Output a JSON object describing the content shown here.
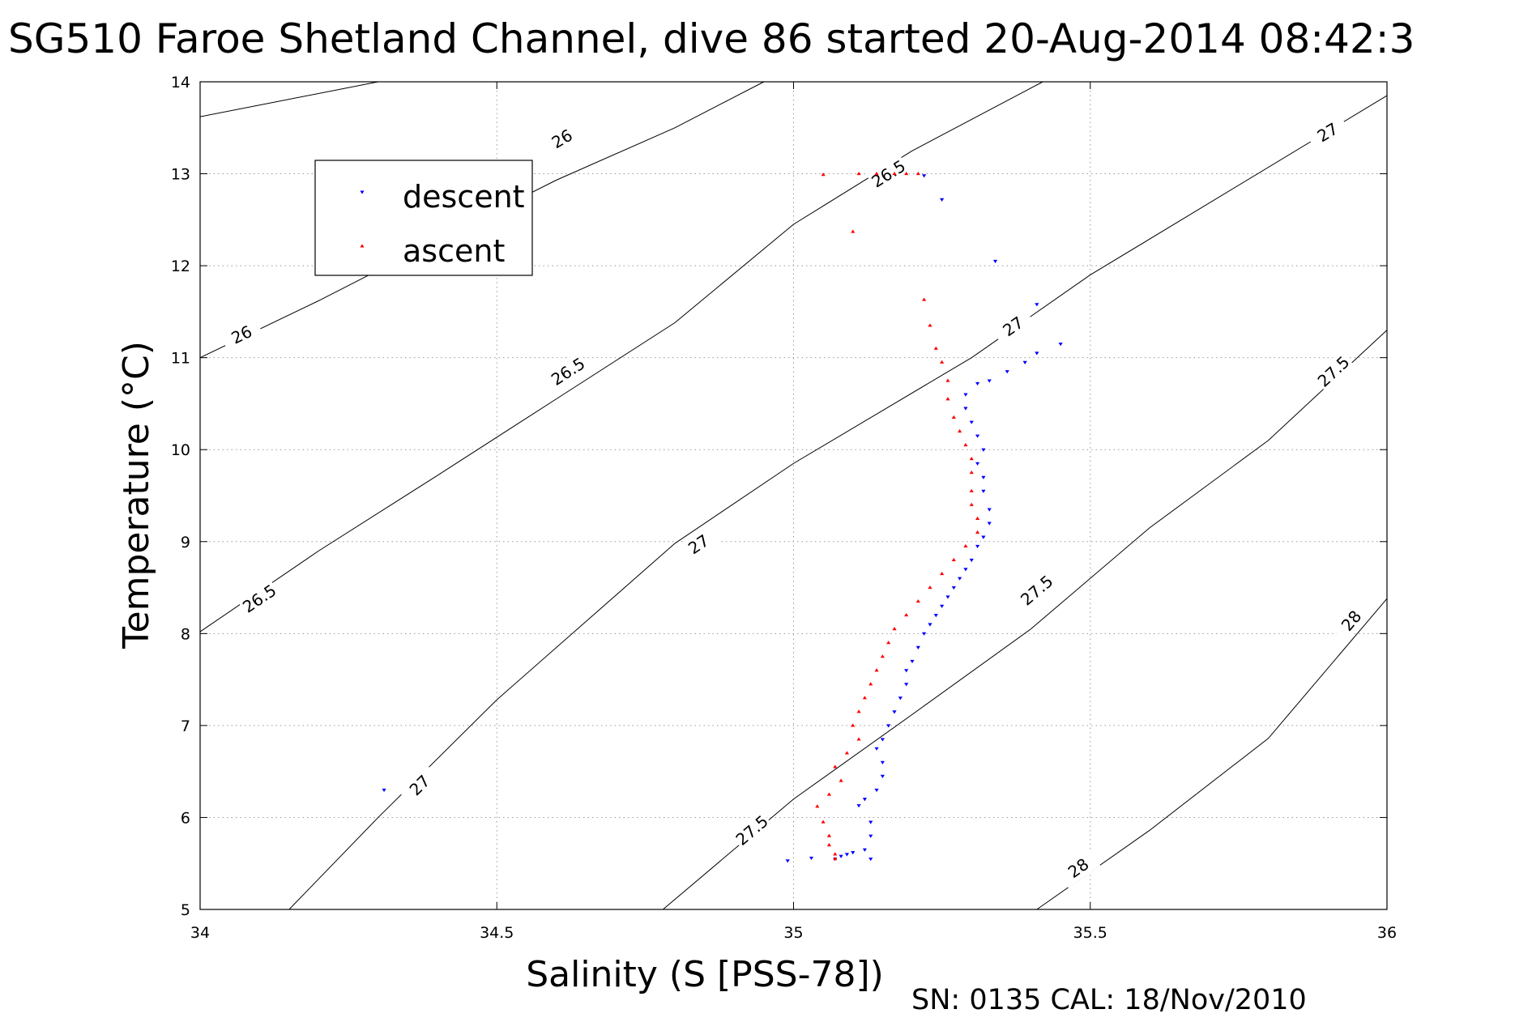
{
  "chart_data": {
    "type": "scatter",
    "title": "SG510 Faroe Shetland Channel, dive 86 started 20-Aug-2014 08:42:3",
    "xlabel": "Salinity (S [PSS-78])",
    "ylabel": "Temperature (°C)",
    "footer": "SN: 0135  CAL: 18/Nov/2010",
    "xlim": [
      34,
      36
    ],
    "ylim": [
      5,
      14
    ],
    "x_ticks": [
      34,
      34.5,
      35,
      35.5,
      36
    ],
    "x_tick_labels": [
      "34",
      "34.5",
      "35",
      "35.5",
      "36"
    ],
    "y_ticks": [
      5,
      6,
      7,
      8,
      9,
      10,
      11,
      12,
      13,
      14
    ],
    "y_tick_labels": [
      "5",
      "6",
      "7",
      "8",
      "9",
      "10",
      "11",
      "12",
      "13",
      "14"
    ],
    "grid": true,
    "legend": {
      "position": "top-left",
      "entries": [
        "descent",
        "ascent"
      ]
    },
    "colors": {
      "descent": "#0000ff",
      "ascent": "#ff0000"
    },
    "contours": [
      {
        "label": "26",
        "points": [
          [
            34,
            13.62
          ],
          [
            34.3,
            14.0
          ]
        ],
        "label_positions": [
          [
            34.61,
            13.38
          ]
        ]
      },
      {
        "label": "26",
        "points": [
          [
            34,
            11.0
          ],
          [
            34.2,
            11.62
          ],
          [
            34.4,
            12.28
          ],
          [
            34.6,
            12.93
          ],
          [
            34.8,
            13.5
          ],
          [
            34.95,
            14.0
          ]
        ],
        "label_positions": [
          [
            34.07,
            11.25
          ]
        ]
      },
      {
        "label": "26.5",
        "points": [
          [
            34,
            8.02
          ],
          [
            34.2,
            8.9
          ],
          [
            34.4,
            9.72
          ],
          [
            34.6,
            10.55
          ],
          [
            34.8,
            11.38
          ],
          [
            35.0,
            12.45
          ],
          [
            35.2,
            13.25
          ],
          [
            35.42,
            14.0
          ]
        ],
        "label_positions": [
          [
            34.1,
            8.38
          ],
          [
            34.62,
            10.85
          ],
          [
            35.16,
            13.0
          ]
        ]
      },
      {
        "label": "27",
        "points": [
          [
            34.15,
            5.0
          ],
          [
            34.3,
            6.0
          ],
          [
            34.5,
            7.28
          ],
          [
            34.8,
            8.98
          ],
          [
            35.0,
            9.85
          ],
          [
            35.3,
            11.0
          ],
          [
            35.5,
            11.9
          ],
          [
            36.0,
            13.85
          ]
        ],
        "label_positions": [
          [
            34.37,
            6.35
          ],
          [
            34.84,
            8.97
          ],
          [
            35.37,
            11.34
          ],
          [
            35.9,
            13.45
          ]
        ]
      },
      {
        "label": "27.5",
        "points": [
          [
            34.78,
            5.0
          ],
          [
            35.0,
            6.2
          ],
          [
            35.2,
            7.12
          ],
          [
            35.4,
            8.05
          ],
          [
            35.6,
            9.15
          ],
          [
            35.8,
            10.1
          ],
          [
            36.0,
            11.3
          ]
        ],
        "label_positions": [
          [
            34.93,
            5.86
          ],
          [
            35.41,
            8.47
          ],
          [
            35.91,
            10.85
          ]
        ]
      },
      {
        "label": "28",
        "points": [
          [
            35.41,
            5.0
          ],
          [
            35.6,
            5.86
          ],
          [
            35.8,
            6.86
          ],
          [
            36.0,
            8.38
          ]
        ],
        "label_positions": [
          [
            35.48,
            5.45
          ],
          [
            35.94,
            8.14
          ]
        ]
      }
    ],
    "series": [
      {
        "name": "descent",
        "marker": "triangle-down",
        "points": [
          [
            34.31,
            6.3
          ],
          [
            34.99,
            5.53
          ],
          [
            35.03,
            5.56
          ],
          [
            35.07,
            5.55
          ],
          [
            35.08,
            5.58
          ],
          [
            35.09,
            5.6
          ],
          [
            35.1,
            5.62
          ],
          [
            35.12,
            5.65
          ],
          [
            35.13,
            5.55
          ],
          [
            35.13,
            5.8
          ],
          [
            35.13,
            5.95
          ],
          [
            35.11,
            6.13
          ],
          [
            35.12,
            6.2
          ],
          [
            35.14,
            6.3
          ],
          [
            35.15,
            6.45
          ],
          [
            35.15,
            6.6
          ],
          [
            35.14,
            6.75
          ],
          [
            35.15,
            6.85
          ],
          [
            35.16,
            7.0
          ],
          [
            35.17,
            7.15
          ],
          [
            35.18,
            7.3
          ],
          [
            35.19,
            7.45
          ],
          [
            35.19,
            7.6
          ],
          [
            35.2,
            7.7
          ],
          [
            35.21,
            7.85
          ],
          [
            35.22,
            8.0
          ],
          [
            35.23,
            8.1
          ],
          [
            35.24,
            8.2
          ],
          [
            35.25,
            8.3
          ],
          [
            35.26,
            8.4
          ],
          [
            35.27,
            8.5
          ],
          [
            35.28,
            8.6
          ],
          [
            35.29,
            8.7
          ],
          [
            35.3,
            8.8
          ],
          [
            35.31,
            8.95
          ],
          [
            35.32,
            9.05
          ],
          [
            35.33,
            9.2
          ],
          [
            35.33,
            9.35
          ],
          [
            35.32,
            9.55
          ],
          [
            35.32,
            9.7
          ],
          [
            35.31,
            9.85
          ],
          [
            35.32,
            10.0
          ],
          [
            35.31,
            10.15
          ],
          [
            35.3,
            10.3
          ],
          [
            35.29,
            10.45
          ],
          [
            35.29,
            10.6
          ],
          [
            35.31,
            10.72
          ],
          [
            35.33,
            10.75
          ],
          [
            35.36,
            10.85
          ],
          [
            35.39,
            10.95
          ],
          [
            35.41,
            11.05
          ],
          [
            35.45,
            11.15
          ],
          [
            35.41,
            11.58
          ],
          [
            35.34,
            12.05
          ],
          [
            35.25,
            12.72
          ],
          [
            35.22,
            12.98
          ]
        ]
      },
      {
        "name": "ascent",
        "marker": "triangle-up",
        "points": [
          [
            35.05,
            12.99
          ],
          [
            35.1,
            12.37
          ],
          [
            35.11,
            13.0
          ],
          [
            35.14,
            13.0
          ],
          [
            35.17,
            13.0
          ],
          [
            35.19,
            13.0
          ],
          [
            35.21,
            13.0
          ],
          [
            35.22,
            11.63
          ],
          [
            35.23,
            11.35
          ],
          [
            35.24,
            11.1
          ],
          [
            35.25,
            10.95
          ],
          [
            35.26,
            10.75
          ],
          [
            35.26,
            10.55
          ],
          [
            35.27,
            10.35
          ],
          [
            35.28,
            10.2
          ],
          [
            35.29,
            10.05
          ],
          [
            35.3,
            9.9
          ],
          [
            35.3,
            9.75
          ],
          [
            35.3,
            9.55
          ],
          [
            35.3,
            9.4
          ],
          [
            35.31,
            9.25
          ],
          [
            35.31,
            9.1
          ],
          [
            35.29,
            8.95
          ],
          [
            35.27,
            8.8
          ],
          [
            35.25,
            8.65
          ],
          [
            35.23,
            8.5
          ],
          [
            35.21,
            8.35
          ],
          [
            35.19,
            8.2
          ],
          [
            35.17,
            8.05
          ],
          [
            35.16,
            7.9
          ],
          [
            35.15,
            7.75
          ],
          [
            35.14,
            7.6
          ],
          [
            35.13,
            7.45
          ],
          [
            35.12,
            7.3
          ],
          [
            35.11,
            7.15
          ],
          [
            35.1,
            7.0
          ],
          [
            35.11,
            6.85
          ],
          [
            35.09,
            6.7
          ],
          [
            35.07,
            6.55
          ],
          [
            35.08,
            6.4
          ],
          [
            35.06,
            6.25
          ],
          [
            35.04,
            6.12
          ],
          [
            35.05,
            5.95
          ],
          [
            35.06,
            5.8
          ],
          [
            35.06,
            5.7
          ],
          [
            35.07,
            5.6
          ],
          [
            35.07,
            5.55
          ]
        ]
      }
    ]
  }
}
